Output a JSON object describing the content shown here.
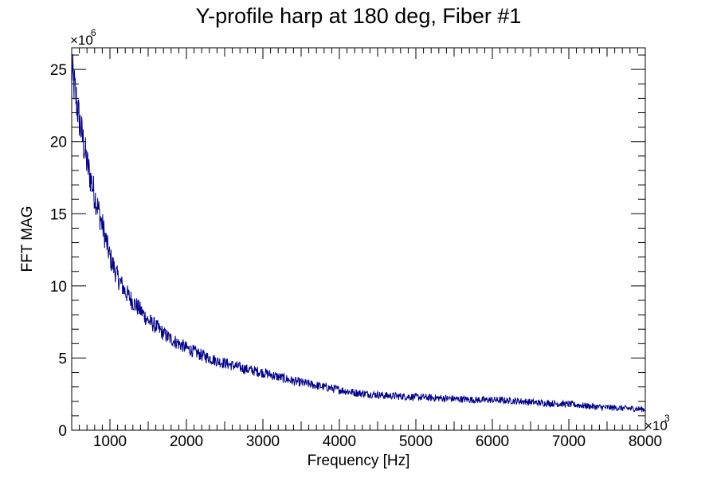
{
  "chart_data": {
    "type": "line",
    "title": "Y-profile harp at 180 deg, Fiber #1",
    "xlabel": "Frequency [Hz]",
    "ylabel": "FFT MAG",
    "x_multiplier_label": "×10",
    "x_multiplier_exp": "3",
    "y_multiplier_label": "×10",
    "y_multiplier_exp": "6",
    "xlim": [
      500,
      8000
    ],
    "ylim": [
      0,
      26.5
    ],
    "x_ticks": [
      1000,
      2000,
      3000,
      4000,
      5000,
      6000,
      7000,
      8000
    ],
    "y_ticks": [
      0,
      5,
      10,
      15,
      20,
      25
    ],
    "grid": false,
    "series": [
      {
        "color": "#00008b",
        "x": [
          500,
          600,
          700,
          800,
          900,
          1000,
          1100,
          1200,
          1300,
          1400,
          1500,
          1600,
          1700,
          1800,
          1900,
          2000,
          2200,
          2400,
          2600,
          2800,
          3000,
          3200,
          3400,
          3600,
          3800,
          4000,
          4200,
          4400,
          4600,
          4800,
          5000,
          5200,
          5400,
          5600,
          5800,
          6000,
          6200,
          6400,
          6600,
          6800,
          7000,
          7200,
          7400,
          7600,
          7800,
          8000
        ],
        "values": [
          25.0,
          21.5,
          18.5,
          16.3,
          14.2,
          12.0,
          10.6,
          9.6,
          8.9,
          8.3,
          7.6,
          7.2,
          6.7,
          6.3,
          6.0,
          5.7,
          5.2,
          4.8,
          4.5,
          4.2,
          4.0,
          3.7,
          3.4,
          3.2,
          3.0,
          2.8,
          2.6,
          2.5,
          2.4,
          2.35,
          2.3,
          2.25,
          2.2,
          2.15,
          2.1,
          2.1,
          2.05,
          2.0,
          1.9,
          1.85,
          1.8,
          1.7,
          1.6,
          1.55,
          1.5,
          1.45
        ]
      }
    ]
  }
}
